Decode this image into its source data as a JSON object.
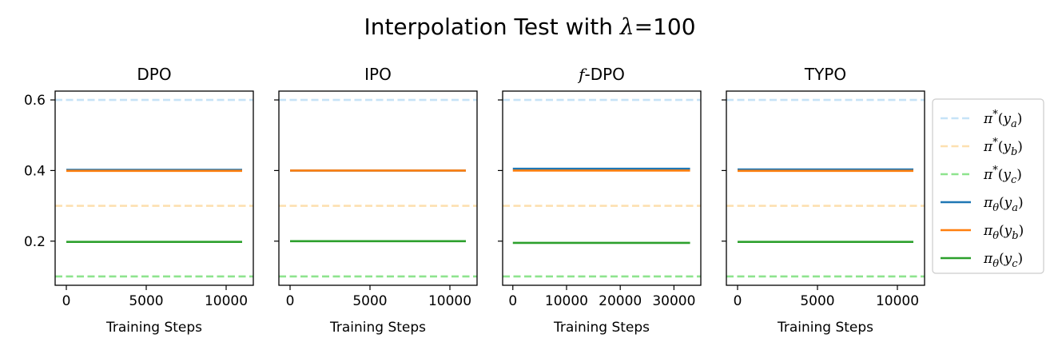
{
  "figure": {
    "title_prefix": "Interpolation Test with ",
    "title_lambda": "λ",
    "title_suffix": "=100"
  },
  "colors": {
    "target_a": "#c6e3f7",
    "target_b": "#fde0b0",
    "target_c": "#8ee48e",
    "pi_a": "#1f77b4",
    "pi_b": "#ff7f0e",
    "pi_c": "#2ca02c"
  },
  "legend": {
    "placement": "right",
    "items": [
      {
        "label": "π*(ya)",
        "color_key": "target_a",
        "dashed": true
      },
      {
        "label": "π*(yb)",
        "color_key": "target_b",
        "dashed": true
      },
      {
        "label": "π*(yc)",
        "color_key": "target_c",
        "dashed": true
      },
      {
        "label": "πθ(ya)",
        "color_key": "pi_a",
        "dashed": false
      },
      {
        "label": "πθ(yb)",
        "color_key": "pi_b",
        "dashed": false
      },
      {
        "label": "πθ(yc)",
        "color_key": "pi_c",
        "dashed": false
      }
    ]
  },
  "chart_data": [
    {
      "type": "line",
      "title": "DPO",
      "xlabel": "Training Steps",
      "ylabel": "",
      "xlim": [
        -700,
        11700
      ],
      "ylim": [
        0.075,
        0.625
      ],
      "xticks": [
        0,
        5000,
        10000
      ],
      "yticks": [
        0.2,
        0.4,
        0.6
      ],
      "references": [
        {
          "name": "π*(ya)",
          "y": 0.6
        },
        {
          "name": "π*(yb)",
          "y": 0.3
        },
        {
          "name": "π*(yc)",
          "y": 0.1
        }
      ],
      "series": [
        {
          "name": "πθ(ya)",
          "x": [
            0,
            11000
          ],
          "y": [
            0.402,
            0.402
          ]
        },
        {
          "name": "πθ(yb)",
          "x": [
            0,
            11000
          ],
          "y": [
            0.399,
            0.399
          ]
        },
        {
          "name": "πθ(yc)",
          "x": [
            0,
            11000
          ],
          "y": [
            0.198,
            0.198
          ]
        }
      ]
    },
    {
      "type": "line",
      "title": "IPO",
      "xlabel": "Training Steps",
      "ylabel": "",
      "xlim": [
        -700,
        11700
      ],
      "ylim": [
        0.075,
        0.625
      ],
      "xticks": [
        0,
        5000,
        10000
      ],
      "yticks": [
        0.2,
        0.4,
        0.6
      ],
      "references": [
        {
          "name": "π*(ya)",
          "y": 0.6
        },
        {
          "name": "π*(yb)",
          "y": 0.3
        },
        {
          "name": "π*(yc)",
          "y": 0.1
        }
      ],
      "series": [
        {
          "name": "πθ(ya)",
          "x": [
            0,
            11000
          ],
          "y": [
            0.4,
            0.4
          ]
        },
        {
          "name": "πθ(yb)",
          "x": [
            0,
            11000
          ],
          "y": [
            0.4,
            0.4
          ]
        },
        {
          "name": "πθ(yc)",
          "x": [
            0,
            11000
          ],
          "y": [
            0.2,
            0.2
          ]
        }
      ]
    },
    {
      "type": "line",
      "title": "f-DPO",
      "xlabel": "Training Steps",
      "ylabel": "",
      "xlim": [
        -1900,
        35000
      ],
      "ylim": [
        0.075,
        0.625
      ],
      "xticks": [
        0,
        10000,
        20000,
        30000
      ],
      "yticks": [
        0.2,
        0.4,
        0.6
      ],
      "references": [
        {
          "name": "π*(ya)",
          "y": 0.6
        },
        {
          "name": "π*(yb)",
          "y": 0.3
        },
        {
          "name": "π*(yc)",
          "y": 0.1
        }
      ],
      "series": [
        {
          "name": "πθ(ya)",
          "x": [
            0,
            33000
          ],
          "y": [
            0.405,
            0.405
          ]
        },
        {
          "name": "πθ(yb)",
          "x": [
            0,
            33000
          ],
          "y": [
            0.4,
            0.4
          ]
        },
        {
          "name": "πθ(yc)",
          "x": [
            0,
            33000
          ],
          "y": [
            0.195,
            0.195
          ]
        }
      ]
    },
    {
      "type": "line",
      "title": "TYPO",
      "xlabel": "Training Steps",
      "ylabel": "",
      "xlim": [
        -700,
        11700
      ],
      "ylim": [
        0.075,
        0.625
      ],
      "xticks": [
        0,
        5000,
        10000
      ],
      "yticks": [
        0.2,
        0.4,
        0.6
      ],
      "references": [
        {
          "name": "π*(ya)",
          "y": 0.6
        },
        {
          "name": "π*(yb)",
          "y": 0.3
        },
        {
          "name": "π*(yc)",
          "y": 0.1
        }
      ],
      "series": [
        {
          "name": "πθ(ya)",
          "x": [
            0,
            11000
          ],
          "y": [
            0.403,
            0.403
          ]
        },
        {
          "name": "πθ(yb)",
          "x": [
            0,
            11000
          ],
          "y": [
            0.399,
            0.399
          ]
        },
        {
          "name": "πθ(yc)",
          "x": [
            0,
            11000
          ],
          "y": [
            0.198,
            0.198
          ]
        }
      ]
    }
  ]
}
